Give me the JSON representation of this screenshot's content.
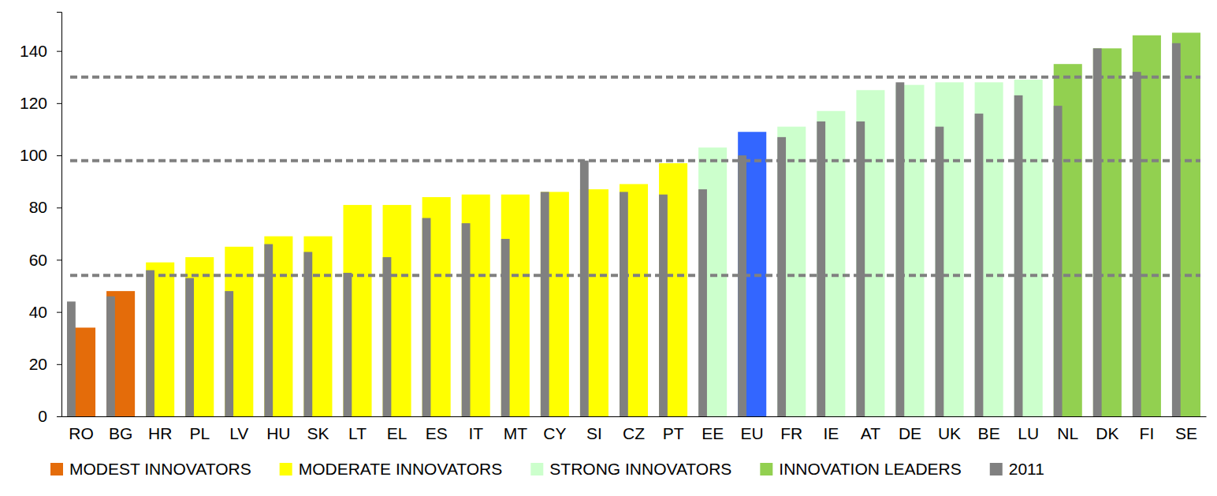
{
  "chart_data": {
    "type": "bar",
    "categories": [
      "RO",
      "BG",
      "HR",
      "PL",
      "LV",
      "HU",
      "SK",
      "LT",
      "EL",
      "ES",
      "IT",
      "MT",
      "CY",
      "SI",
      "CZ",
      "PT",
      "EE",
      "EU",
      "FR",
      "IE",
      "AT",
      "DE",
      "UK",
      "BE",
      "LU",
      "NL",
      "DK",
      "FI",
      "SE"
    ],
    "series": [
      {
        "values": [
          34,
          48,
          59,
          61,
          65,
          69,
          69,
          81,
          81,
          84,
          85,
          85,
          86,
          87,
          89,
          97,
          103,
          109,
          111,
          117,
          125,
          127,
          128,
          128,
          129,
          135,
          141,
          146,
          147
        ],
        "colors": [
          "#e46c0a",
          "#e46c0a",
          "#ffff00",
          "#ffff00",
          "#ffff00",
          "#ffff00",
          "#ffff00",
          "#ffff00",
          "#ffff00",
          "#ffff00",
          "#ffff00",
          "#ffff00",
          "#ffff00",
          "#ffff00",
          "#ffff00",
          "#ffff00",
          "#ccffcc",
          "#3366ff",
          "#ccffcc",
          "#ccffcc",
          "#ccffcc",
          "#ccffcc",
          "#ccffcc",
          "#ccffcc",
          "#ccffcc",
          "#92d050",
          "#92d050",
          "#92d050",
          "#92d050"
        ]
      },
      {
        "name": "2011",
        "color": "#808080",
        "values": [
          44,
          46,
          56,
          53,
          48,
          66,
          63,
          55,
          61,
          76,
          74,
          68,
          86,
          98,
          86,
          85,
          87,
          100,
          107,
          113,
          113,
          128,
          111,
          116,
          123,
          119,
          141,
          132,
          143
        ]
      }
    ],
    "groups": [
      {
        "name": "MODEST INNOVATORS",
        "color": "#e46c0a"
      },
      {
        "name": "MODERATE INNOVATORS",
        "color": "#ffff00"
      },
      {
        "name": "STRONG INNOVATORS",
        "color": "#ccffcc"
      },
      {
        "name": "INNOVATION LEADERS",
        "color": "#92d050"
      }
    ],
    "reference_lines": [
      54,
      98,
      130
    ],
    "ylim": [
      0,
      155
    ],
    "yticks": [
      0,
      20,
      40,
      60,
      80,
      100,
      120,
      140
    ],
    "grid": false,
    "legend": "bottom"
  }
}
